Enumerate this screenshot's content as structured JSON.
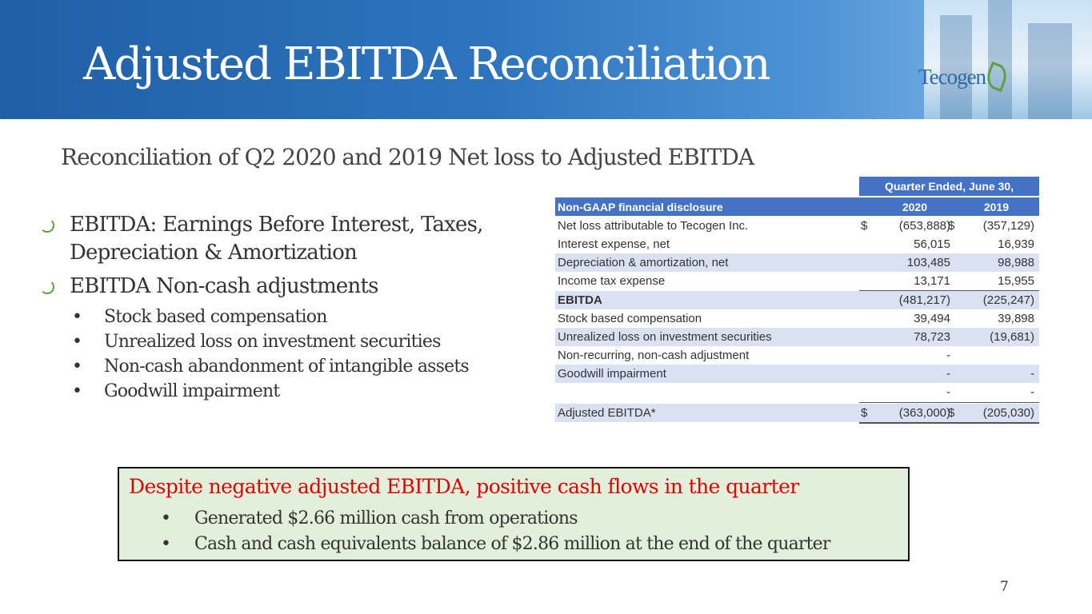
{
  "header": {
    "title": "Adjusted EBITDA Reconciliation",
    "logo_text": "Tecogen"
  },
  "subtitle": "Reconciliation of Q2 2020 and 2019 Net loss to Adjusted EBITDA",
  "bullets": [
    {
      "text_line1": "EBITDA: Earnings Before Interest, Taxes,",
      "text_line2": "Depreciation & Amortization"
    },
    {
      "text_line1": "EBITDA Non-cash adjustments"
    }
  ],
  "sub_bullets": [
    "Stock based compensation",
    "Unrealized loss on investment securities",
    "Non-cash abandonment of intangible assets",
    "Goodwill impairment"
  ],
  "table": {
    "period_header": "Quarter Ended, June 30,",
    "column_label": "Non-GAAP financial disclosure",
    "year1": "2020",
    "year2": "2019",
    "rows": [
      {
        "label": "Net loss attributable to Tecogen Inc.",
        "cur1": "$",
        "v1": "(653,888)",
        "cur2": "$",
        "v2": "(357,129)"
      },
      {
        "label": "Interest expense, net",
        "cur1": "",
        "v1": "56,015",
        "cur2": "",
        "v2": "16,939"
      },
      {
        "label": "Depreciation & amortization, net",
        "cur1": "",
        "v1": "103,485",
        "cur2": "",
        "v2": "98,988"
      },
      {
        "label": "Income tax expense",
        "cur1": "",
        "v1": "13,171",
        "cur2": "",
        "v2": "15,955"
      },
      {
        "label": "EBITDA",
        "cur1": "",
        "v1": "(481,217)",
        "cur2": "",
        "v2": "(225,247)"
      },
      {
        "label": "Stock based compensation",
        "cur1": "",
        "v1": "39,494",
        "cur2": "",
        "v2": "39,898"
      },
      {
        "label": "Unrealized loss on investment securities",
        "cur1": "",
        "v1": "78,723",
        "cur2": "",
        "v2": "(19,681)"
      },
      {
        "label": "Non-recurring, non-cash adjustment",
        "cur1": "",
        "v1": "-",
        "cur2": "",
        "v2": ""
      },
      {
        "label": "Goodwill impairment",
        "cur1": "",
        "v1": "-",
        "cur2": "",
        "v2": "-"
      },
      {
        "label": "",
        "cur1": "",
        "v1": "-",
        "cur2": "",
        "v2": "-"
      },
      {
        "label": "Adjusted EBITDA*",
        "cur1": "$",
        "v1": "(363,000)",
        "cur2": "$",
        "v2": "(205,030)"
      }
    ]
  },
  "callout": {
    "title": "Despite negative adjusted EBITDA, positive cash flows in the quarter",
    "items": [
      "Generated $2.66 million cash from operations",
      "Cash and cash equivalents balance of $2.86 million at the end of the quarter"
    ]
  },
  "page_number": "7",
  "colors": {
    "header_blue": "#2e74bd",
    "table_header": "#4472c4",
    "table_shade": "#d9e1f2",
    "callout_bg": "#e2efda",
    "callout_title": "#e00000",
    "bullet_green": "#5ba33b"
  }
}
